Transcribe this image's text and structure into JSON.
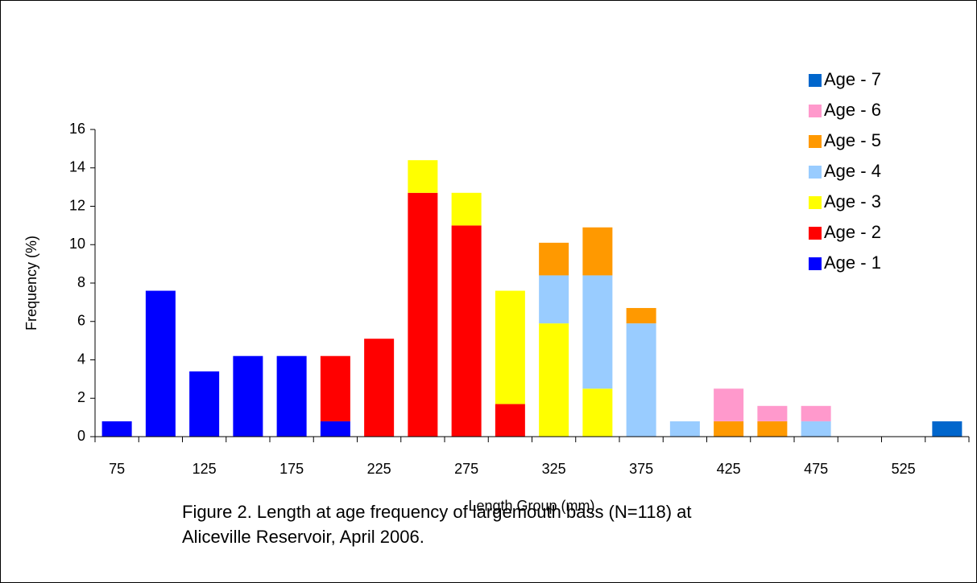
{
  "chart_data": {
    "type": "stacked_bar",
    "categories": [
      75,
      null,
      125,
      null,
      175,
      null,
      225,
      null,
      275,
      null,
      325,
      null,
      375,
      null,
      425,
      null,
      475,
      null,
      525,
      null
    ],
    "series": [
      {
        "name": "Age - 1",
        "color": "#0000ff",
        "values": [
          0.8,
          7.6,
          3.4,
          4.2,
          4.2,
          0.8,
          0,
          0,
          0,
          0,
          0,
          0,
          0,
          0,
          0,
          0,
          0,
          0,
          0,
          0
        ]
      },
      {
        "name": "Age - 2",
        "color": "#ff0000",
        "values": [
          0,
          0,
          0,
          0,
          0,
          3.4,
          5.1,
          12.7,
          11.0,
          1.7,
          0,
          0,
          0,
          0,
          0,
          0,
          0,
          0,
          0,
          0
        ]
      },
      {
        "name": "Age - 3",
        "color": "#ffff00",
        "values": [
          0,
          0,
          0,
          0,
          0,
          0,
          0,
          1.7,
          1.7,
          5.9,
          5.9,
          2.5,
          0,
          0,
          0,
          0,
          0,
          0,
          0,
          0
        ]
      },
      {
        "name": "Age - 4",
        "color": "#99ccff",
        "values": [
          0,
          0,
          0,
          0,
          0,
          0,
          0,
          0,
          0,
          0,
          2.5,
          5.9,
          5.9,
          0.8,
          0,
          0,
          0.8,
          0,
          0,
          0
        ]
      },
      {
        "name": "Age - 5",
        "color": "#ff9900",
        "values": [
          0,
          0,
          0,
          0,
          0,
          0,
          0,
          0,
          0,
          0,
          1.7,
          2.5,
          0.8,
          0,
          0.8,
          0.8,
          0,
          0,
          0,
          0
        ]
      },
      {
        "name": "Age - 6",
        "color": "#ff99cc",
        "values": [
          0,
          0,
          0,
          0,
          0,
          0,
          0,
          0,
          0,
          0,
          0,
          0,
          0,
          0,
          1.7,
          0.8,
          0.8,
          0,
          0,
          0
        ]
      },
      {
        "name": "Age - 7",
        "color": "#0066cc",
        "values": [
          0,
          0,
          0,
          0,
          0,
          0,
          0,
          0,
          0,
          0,
          0,
          0,
          0,
          0,
          0,
          0,
          0,
          0,
          0,
          0.8
        ]
      }
    ],
    "x_label": "Length Group (mm)",
    "y_label": "Frequency (%)",
    "ylim": [
      0,
      16
    ],
    "yticks": [
      0,
      2,
      4,
      6,
      8,
      10,
      12,
      14,
      16
    ],
    "legend": "right",
    "legend_order": "reversed",
    "caption": [
      "Figure 2. Length at age frequency of largemouth bass (N=118) at",
      "Aliceville Reservoir, April 2006."
    ]
  }
}
